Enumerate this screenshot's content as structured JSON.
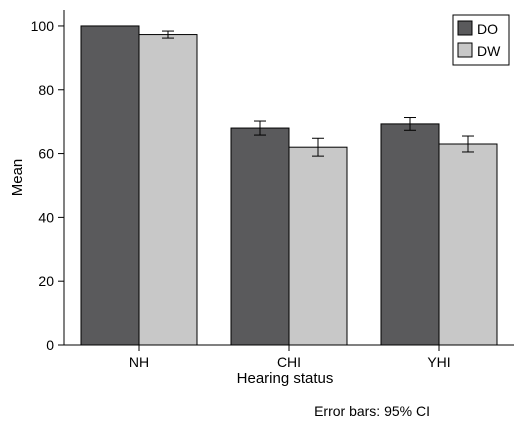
{
  "chart_data": {
    "type": "bar",
    "title": "",
    "xlabel": "Hearing status",
    "ylabel": "Mean",
    "ylim": [
      0,
      105
    ],
    "yticks": [
      0,
      20,
      40,
      60,
      80,
      100
    ],
    "categories": [
      "NH",
      "CHI",
      "YHI"
    ],
    "series": [
      {
        "name": "DO",
        "color": "#5a5a5c",
        "values": [
          100,
          68,
          69.3
        ],
        "ci_low": [
          100,
          65.8,
          67.3
        ],
        "ci_high": [
          100,
          70.2,
          71.3
        ]
      },
      {
        "name": "DW",
        "color": "#c8c8c8",
        "values": [
          97.3,
          62,
          63
        ],
        "ci_low": [
          96.2,
          59.2,
          60.5
        ],
        "ci_high": [
          98.4,
          64.8,
          65.5
        ]
      }
    ],
    "legend_position": "top-right",
    "grid": false,
    "note": "Error bars: 95% CI"
  }
}
